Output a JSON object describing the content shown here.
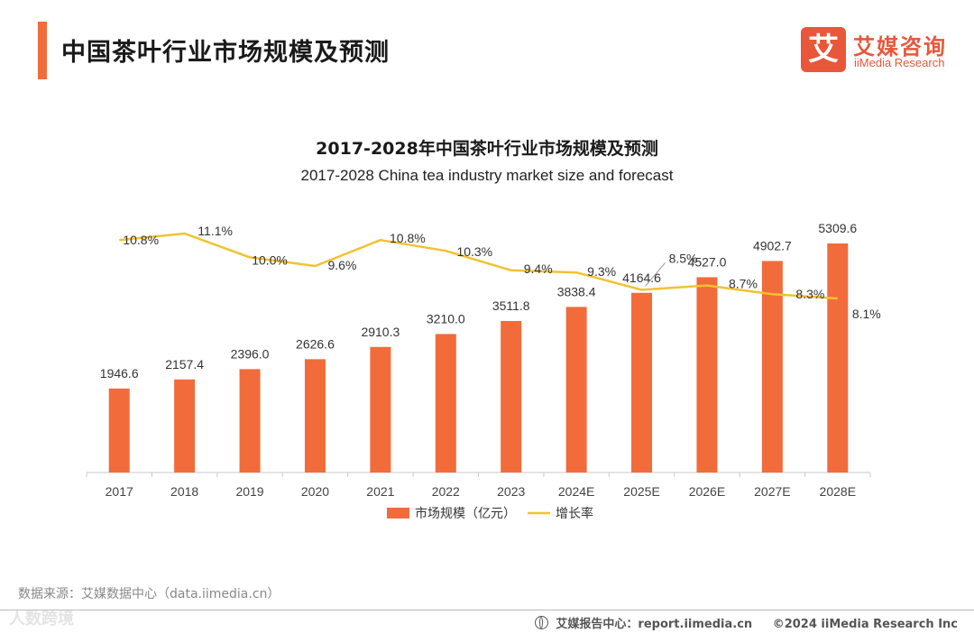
{
  "header": {
    "title": "中国茶叶行业市场规模及预测",
    "logo_mark": "艾",
    "logo_cn": "艾媒咨询",
    "logo_en": "iiMedia Research"
  },
  "chart_data": {
    "type": "bar",
    "title": "2017-2028年中国茶叶行业市场规模及预测",
    "subtitle": "2017-2028 China tea industry market size and forecast",
    "categories": [
      "2017",
      "2018",
      "2019",
      "2020",
      "2021",
      "2022",
      "2023",
      "2024E",
      "2025E",
      "2026E",
      "2027E",
      "2028E"
    ],
    "series": [
      {
        "name": "市场规模（亿元）",
        "type": "bar",
        "color": "#f26b3a",
        "values": [
          1946.6,
          2157.4,
          2396.0,
          2626.6,
          2910.3,
          3210.0,
          3511.8,
          3838.4,
          4164.6,
          4527.0,
          4902.7,
          5309.6
        ],
        "labels": [
          "1946.6",
          "2157.4",
          "2396.0",
          "2626.6",
          "2910.3",
          "3210.0",
          "3511.8",
          "3838.4",
          "4164.6",
          "4527.0",
          "4902.7",
          "5309.6"
        ]
      },
      {
        "name": "增长率",
        "type": "line",
        "color": "#f2c230",
        "values": [
          10.8,
          11.1,
          10.0,
          9.6,
          10.8,
          10.3,
          9.4,
          9.3,
          8.5,
          8.7,
          8.3,
          8.1
        ],
        "labels": [
          "10.8%",
          "11.1%",
          "10.0%",
          "9.6%",
          "10.8%",
          "10.3%",
          "9.4%",
          "9.3%",
          "8.5%",
          "8.7%",
          "8.3%",
          "8.1%"
        ]
      }
    ],
    "legend_position": "bottom",
    "grid": false
  },
  "footer": {
    "source": "数据来源：艾媒数据中心（data.iimedia.cn）",
    "watermark": "人数跨境",
    "report_center": "艾媒报告中心：report.iimedia.cn",
    "copyright": "©2024  iiMedia Research  Inc"
  }
}
